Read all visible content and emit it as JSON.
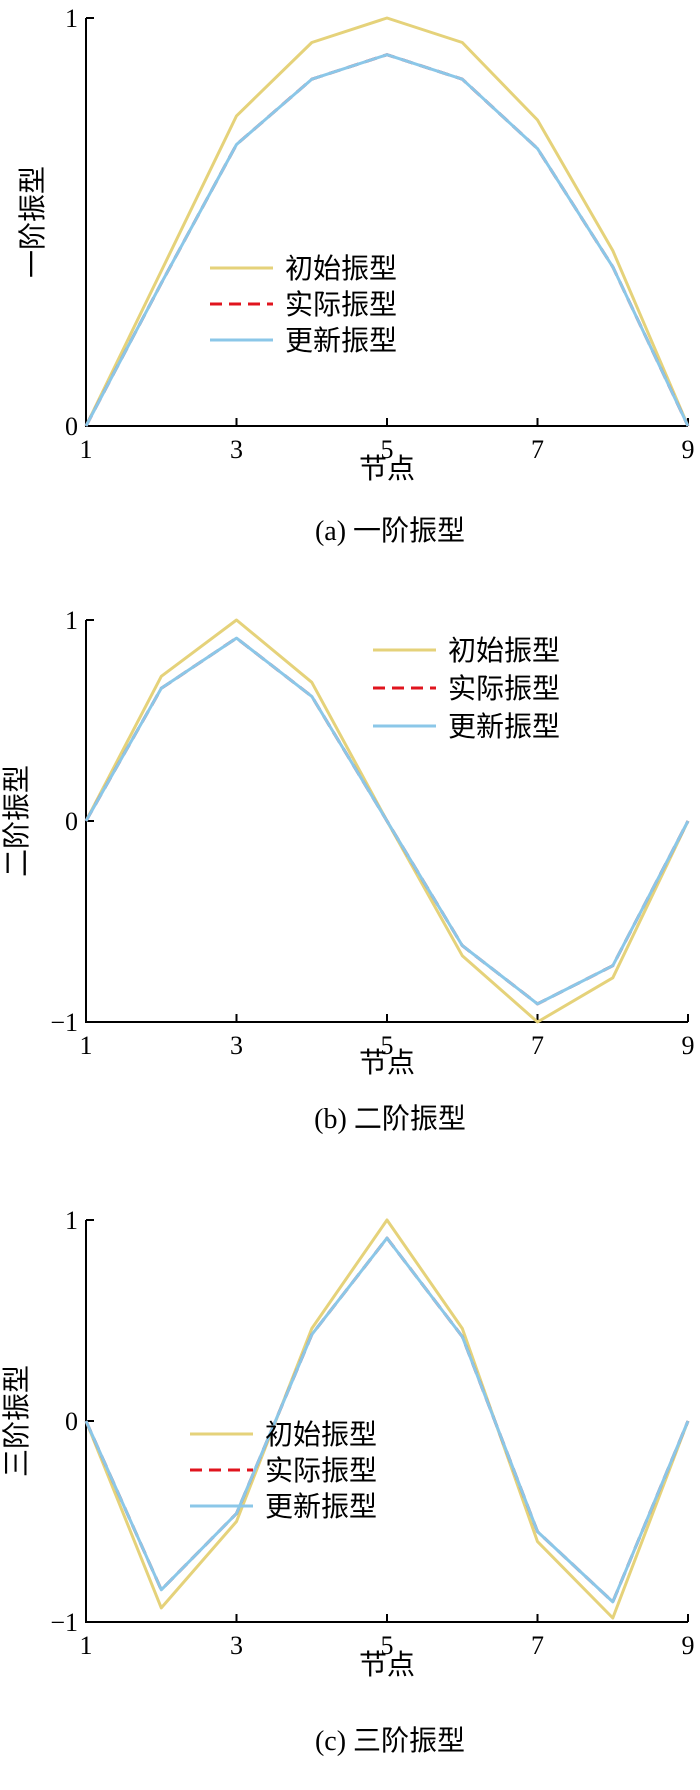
{
  "series_styles": [
    {
      "color": "#E5D27A",
      "dash": "",
      "width": 3
    },
    {
      "color": "#E0141E",
      "dash": "12 7",
      "width": 3
    },
    {
      "color": "#8BC7E8",
      "dash": "",
      "width": 3
    }
  ],
  "chart_data": [
    {
      "type": "line",
      "title": "(a)  一阶振型",
      "xlabel": "节点",
      "ylabel": "一阶振型",
      "x": [
        1,
        2,
        3,
        4,
        5,
        6,
        7,
        8,
        9
      ],
      "xticks": [
        "1",
        "3",
        "5",
        "7",
        "9"
      ],
      "xtick_values": [
        1,
        3,
        5,
        7,
        9
      ],
      "xlim": [
        1,
        9
      ],
      "yticks": [
        "0",
        "1"
      ],
      "ytick_values": [
        0,
        1
      ],
      "ylim": [
        0,
        1
      ],
      "legend": [
        "初始振型",
        "实际振型",
        "更新振型"
      ],
      "legend_position": "center",
      "series": [
        {
          "name": "初始振型",
          "values": [
            0,
            0.38,
            0.76,
            0.94,
            1.0,
            0.94,
            0.75,
            0.43,
            0
          ]
        },
        {
          "name": "实际振型",
          "values": [
            0,
            0.35,
            0.69,
            0.85,
            0.91,
            0.85,
            0.68,
            0.39,
            0
          ]
        },
        {
          "name": "更新振型",
          "values": [
            0,
            0.35,
            0.69,
            0.85,
            0.91,
            0.85,
            0.68,
            0.39,
            0
          ]
        }
      ]
    },
    {
      "type": "line",
      "title": "(b)  二阶振型",
      "xlabel": "节点",
      "ylabel": "二阶振型",
      "x": [
        1,
        2,
        3,
        4,
        5,
        6,
        7,
        8,
        9
      ],
      "xticks": [
        "1",
        "3",
        "5",
        "7",
        "9"
      ],
      "xtick_values": [
        1,
        3,
        5,
        7,
        9
      ],
      "xlim": [
        1,
        9
      ],
      "yticks": [
        "−1",
        "0",
        "1"
      ],
      "ytick_values": [
        -1,
        0,
        1
      ],
      "ylim": [
        -1,
        1
      ],
      "legend": [
        "初始振型",
        "实际振型",
        "更新振型"
      ],
      "legend_position": "top-right",
      "series": [
        {
          "name": "初始振型",
          "values": [
            0,
            0.72,
            1.0,
            0.69,
            0,
            -0.67,
            -1.0,
            -0.78,
            0
          ]
        },
        {
          "name": "实际振型",
          "values": [
            0,
            0.66,
            0.91,
            0.62,
            0,
            -0.62,
            -0.91,
            -0.72,
            0
          ]
        },
        {
          "name": "更新振型",
          "values": [
            0,
            0.66,
            0.91,
            0.62,
            0,
            -0.62,
            -0.91,
            -0.72,
            0
          ]
        }
      ]
    },
    {
      "type": "line",
      "title": "(c)  三阶振型",
      "xlabel": "节点",
      "ylabel": "三阶振型",
      "x": [
        1,
        2,
        3,
        4,
        5,
        6,
        7,
        8,
        9
      ],
      "xticks": [
        "1",
        "3",
        "5",
        "7",
        "9"
      ],
      "xtick_values": [
        1,
        3,
        5,
        7,
        9
      ],
      "xlim": [
        1,
        9
      ],
      "yticks": [
        "−1",
        "0",
        "1"
      ],
      "ytick_values": [
        -1,
        0,
        1
      ],
      "ylim": [
        -1,
        1
      ],
      "legend": [
        "初始振型",
        "实际振型",
        "更新振型"
      ],
      "legend_position": "bottom-center",
      "series": [
        {
          "name": "初始振型",
          "values": [
            0,
            -0.93,
            -0.5,
            0.46,
            1.0,
            0.46,
            -0.6,
            -0.98,
            0
          ]
        },
        {
          "name": "实际振型",
          "values": [
            0,
            -0.84,
            -0.46,
            0.43,
            0.91,
            0.42,
            -0.55,
            -0.9,
            0
          ]
        },
        {
          "name": "更新振型",
          "values": [
            0,
            -0.84,
            -0.46,
            0.43,
            0.91,
            0.42,
            -0.55,
            -0.9,
            0
          ]
        }
      ]
    }
  ]
}
